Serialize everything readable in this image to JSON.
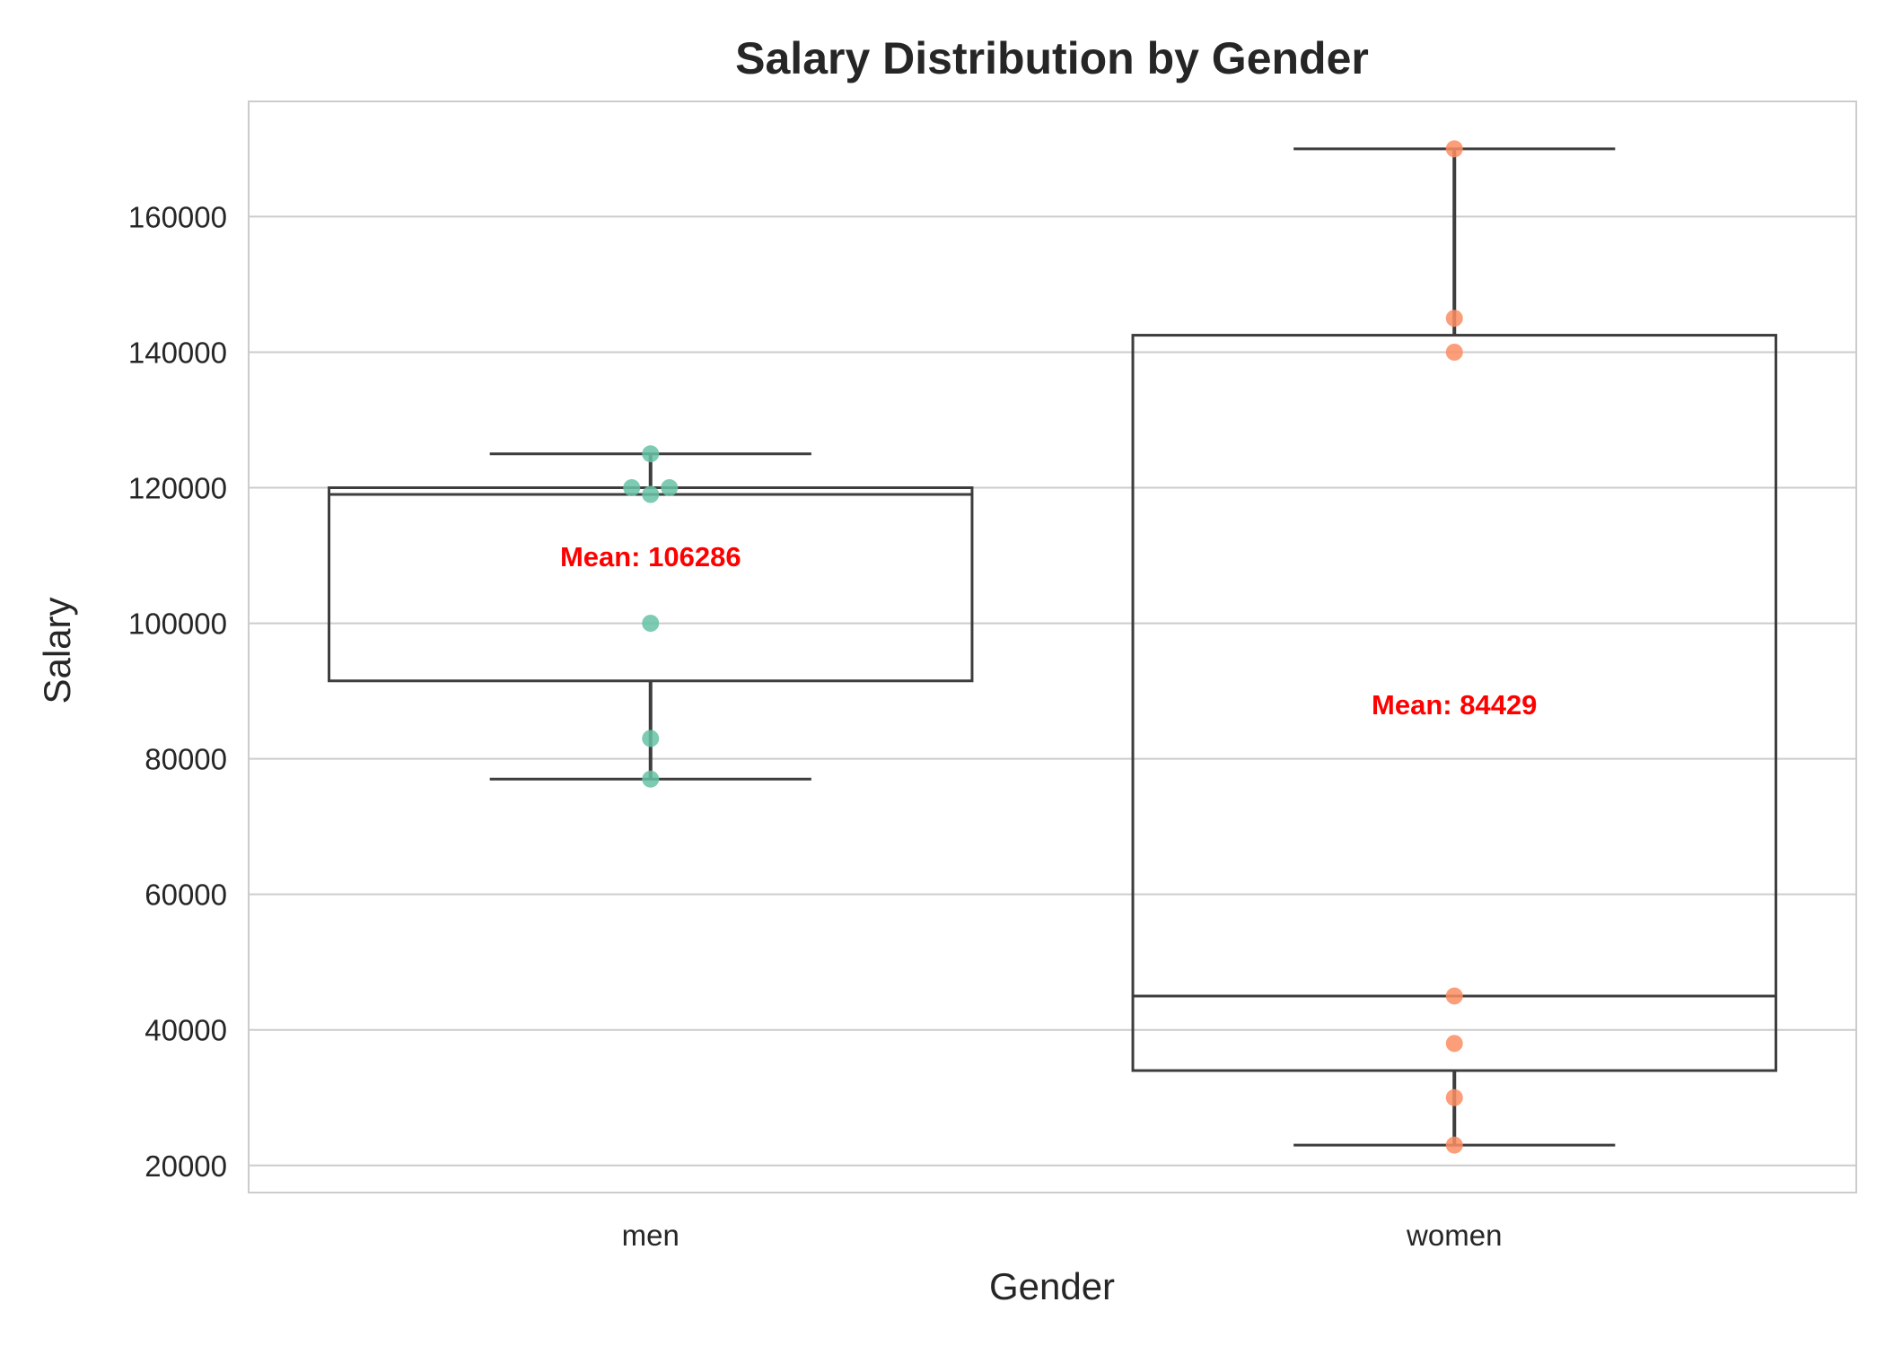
{
  "chart_data": {
    "type": "box",
    "title": "Salary Distribution by Gender",
    "xlabel": "Gender",
    "ylabel": "Salary",
    "ylim": [
      16000,
      177000
    ],
    "yticks": [
      20000,
      40000,
      60000,
      80000,
      100000,
      120000,
      140000,
      160000
    ],
    "grid": true,
    "categories": [
      "men",
      "women"
    ],
    "series": [
      {
        "category": "men",
        "color": "#66c2a5",
        "whisker_low": 77000,
        "q1": 91500,
        "median": 119000,
        "q3": 120000,
        "whisker_high": 125000,
        "points": [
          77000,
          83000,
          100000,
          119000,
          120000,
          120000,
          125000
        ],
        "mean": 106286,
        "mean_label": "Mean: 106286"
      },
      {
        "category": "women",
        "color": "#fc8d62",
        "whisker_low": 23000,
        "q1": 34000,
        "median": 45000,
        "q3": 142500,
        "whisker_high": 170000,
        "points": [
          23000,
          30000,
          38000,
          45000,
          140000,
          145000,
          170000
        ],
        "mean": 84429,
        "mean_label": "Mean: 84429"
      }
    ],
    "colors": {
      "box_edge": "#3d3d3d",
      "grid": "#cccccc",
      "annotation": "#ff0000"
    }
  }
}
